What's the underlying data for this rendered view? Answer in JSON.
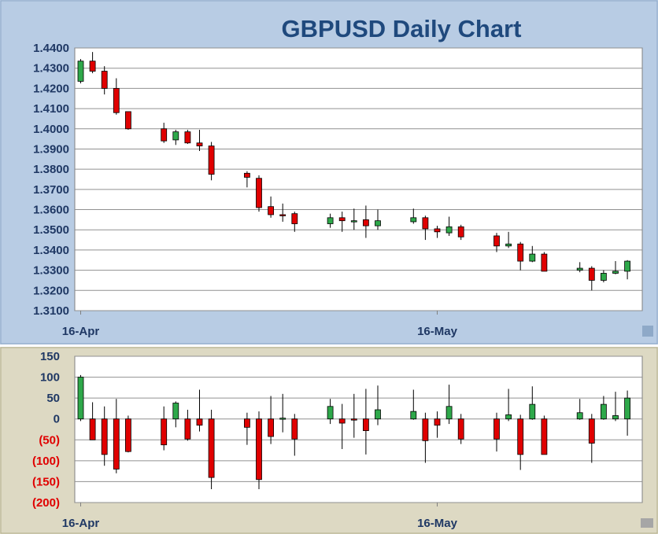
{
  "chart_data": [
    {
      "type": "candlestick",
      "title": "GBPUSD Daily Chart",
      "ylim": [
        1.31,
        1.44
      ],
      "y_ticks": [
        1.44,
        1.43,
        1.42,
        1.41,
        1.4,
        1.39,
        1.38,
        1.37,
        1.36,
        1.35,
        1.34,
        1.33,
        1.32,
        1.31
      ],
      "y_tick_labels": [
        "1.4400",
        "1.4300",
        "1.4200",
        "1.4100",
        "1.4000",
        "1.3900",
        "1.3800",
        "1.3700",
        "1.3600",
        "1.3500",
        "1.3400",
        "1.3300",
        "1.3200",
        "1.3100"
      ],
      "x_tick_labels": [
        {
          "label": "16-Apr",
          "day": 0
        },
        {
          "label": "16-May",
          "day": 30
        }
      ],
      "grid": true,
      "colors": {
        "up": "#2ea84a",
        "down": "#e00000",
        "background": "#b8cce4",
        "plot": "#ffffff"
      },
      "candles": [
        {
          "day": 0,
          "open": 1.4235,
          "high": 1.4345,
          "low": 1.4225,
          "close": 1.4335
        },
        {
          "day": 1,
          "open": 1.4335,
          "high": 1.438,
          "low": 1.4275,
          "close": 1.4285
        },
        {
          "day": 2,
          "open": 1.4285,
          "high": 1.431,
          "low": 1.417,
          "close": 1.42
        },
        {
          "day": 3,
          "open": 1.42,
          "high": 1.425,
          "low": 1.407,
          "close": 1.408
        },
        {
          "day": 4,
          "open": 1.4085,
          "high": 1.4085,
          "low": 1.3995,
          "close": 1.4
        },
        {
          "day": 7,
          "open": 1.4,
          "high": 1.403,
          "low": 1.393,
          "close": 1.394
        },
        {
          "day": 8,
          "open": 1.3945,
          "high": 1.3995,
          "low": 1.392,
          "close": 1.3985
        },
        {
          "day": 9,
          "open": 1.3985,
          "high": 1.3995,
          "low": 1.3925,
          "close": 1.393
        },
        {
          "day": 10,
          "open": 1.393,
          "high": 1.3995,
          "low": 1.389,
          "close": 1.3915
        },
        {
          "day": 11,
          "open": 1.3915,
          "high": 1.3935,
          "low": 1.3745,
          "close": 1.3775
        },
        {
          "day": 14,
          "open": 1.378,
          "high": 1.379,
          "low": 1.371,
          "close": 1.376
        },
        {
          "day": 15,
          "open": 1.3755,
          "high": 1.377,
          "low": 1.359,
          "close": 1.361
        },
        {
          "day": 16,
          "open": 1.3615,
          "high": 1.3665,
          "low": 1.356,
          "close": 1.3575
        },
        {
          "day": 17,
          "open": 1.3575,
          "high": 1.363,
          "low": 1.354,
          "close": 1.357
        },
        {
          "day": 18,
          "open": 1.358,
          "high": 1.359,
          "low": 1.349,
          "close": 1.353
        },
        {
          "day": 21,
          "open": 1.353,
          "high": 1.358,
          "low": 1.351,
          "close": 1.356
        },
        {
          "day": 22,
          "open": 1.356,
          "high": 1.359,
          "low": 1.349,
          "close": 1.3545
        },
        {
          "day": 23,
          "open": 1.3545,
          "high": 1.3605,
          "low": 1.35,
          "close": 1.3545
        },
        {
          "day": 24,
          "open": 1.355,
          "high": 1.362,
          "low": 1.346,
          "close": 1.352
        },
        {
          "day": 25,
          "open": 1.352,
          "high": 1.36,
          "low": 1.35,
          "close": 1.3545
        },
        {
          "day": 28,
          "open": 1.354,
          "high": 1.3605,
          "low": 1.353,
          "close": 1.356
        },
        {
          "day": 29,
          "open": 1.356,
          "high": 1.357,
          "low": 1.345,
          "close": 1.3505
        },
        {
          "day": 30,
          "open": 1.3505,
          "high": 1.352,
          "low": 1.346,
          "close": 1.349
        },
        {
          "day": 31,
          "open": 1.3485,
          "high": 1.3565,
          "low": 1.347,
          "close": 1.3515
        },
        {
          "day": 32,
          "open": 1.3515,
          "high": 1.3525,
          "low": 1.345,
          "close": 1.3465
        },
        {
          "day": 35,
          "open": 1.347,
          "high": 1.3485,
          "low": 1.339,
          "close": 1.342
        },
        {
          "day": 36,
          "open": 1.342,
          "high": 1.349,
          "low": 1.341,
          "close": 1.343
        },
        {
          "day": 37,
          "open": 1.343,
          "high": 1.344,
          "low": 1.33,
          "close": 1.3345
        },
        {
          "day": 38,
          "open": 1.3345,
          "high": 1.342,
          "low": 1.334,
          "close": 1.338
        },
        {
          "day": 39,
          "open": 1.338,
          "high": 1.339,
          "low": 1.3295,
          "close": 1.3295
        },
        {
          "day": 42,
          "open": 1.33,
          "high": 1.334,
          "low": 1.329,
          "close": 1.331
        },
        {
          "day": 43,
          "open": 1.331,
          "high": 1.332,
          "low": 1.32,
          "close": 1.325
        },
        {
          "day": 44,
          "open": 1.325,
          "high": 1.33,
          "low": 1.324,
          "close": 1.3285
        },
        {
          "day": 45,
          "open": 1.3285,
          "high": 1.3345,
          "low": 1.328,
          "close": 1.3295
        },
        {
          "day": 46,
          "open": 1.3295,
          "high": 1.335,
          "low": 1.3255,
          "close": 1.3345
        }
      ]
    },
    {
      "type": "candlestick",
      "ylim": [
        -200,
        150
      ],
      "y_ticks": [
        150,
        100,
        50,
        0,
        -50,
        -100,
        -150,
        -200
      ],
      "y_tick_labels": [
        "150",
        "100",
        "50",
        "0",
        "(50)",
        "(100)",
        "(150)",
        "(200)"
      ],
      "x_tick_labels": [
        {
          "label": "16-Apr",
          "day": 0
        },
        {
          "label": "16-May",
          "day": 30
        }
      ],
      "grid": true,
      "colors": {
        "up": "#2ea84a",
        "down": "#e00000",
        "background": "#ddd9c3",
        "plot": "#ffffff"
      },
      "candles": [
        {
          "day": 0,
          "open": 0,
          "high": 105,
          "low": -5,
          "close": 100
        },
        {
          "day": 1,
          "open": 0,
          "high": 40,
          "low": -50,
          "close": -50
        },
        {
          "day": 2,
          "open": 0,
          "high": 30,
          "low": -112,
          "close": -85
        },
        {
          "day": 3,
          "open": 0,
          "high": 48,
          "low": -130,
          "close": -120
        },
        {
          "day": 4,
          "open": 0,
          "high": 8,
          "low": -80,
          "close": -78
        },
        {
          "day": 7,
          "open": 0,
          "high": 30,
          "low": -75,
          "close": -62
        },
        {
          "day": 8,
          "open": 0,
          "high": 42,
          "low": -20,
          "close": 38
        },
        {
          "day": 9,
          "open": 0,
          "high": 22,
          "low": -52,
          "close": -48
        },
        {
          "day": 10,
          "open": 0,
          "high": 70,
          "low": -30,
          "close": -15
        },
        {
          "day": 11,
          "open": 0,
          "high": 22,
          "low": -168,
          "close": -140
        },
        {
          "day": 14,
          "open": 0,
          "high": 15,
          "low": -62,
          "close": -20
        },
        {
          "day": 15,
          "open": 0,
          "high": 18,
          "low": -168,
          "close": -145
        },
        {
          "day": 16,
          "open": 0,
          "high": 55,
          "low": -60,
          "close": -42
        },
        {
          "day": 17,
          "open": 0,
          "high": 60,
          "low": -32,
          "close": 2
        },
        {
          "day": 18,
          "open": 0,
          "high": 12,
          "low": -88,
          "close": -48
        },
        {
          "day": 21,
          "open": 0,
          "high": 48,
          "low": -12,
          "close": 30
        },
        {
          "day": 22,
          "open": 0,
          "high": 36,
          "low": -72,
          "close": -10
        },
        {
          "day": 23,
          "open": 0,
          "high": 60,
          "low": -45,
          "close": -2
        },
        {
          "day": 24,
          "open": 0,
          "high": 72,
          "low": -85,
          "close": -28
        },
        {
          "day": 25,
          "open": 0,
          "high": 80,
          "low": -15,
          "close": 22
        },
        {
          "day": 28,
          "open": 0,
          "high": 70,
          "low": -2,
          "close": 18
        },
        {
          "day": 29,
          "open": 0,
          "high": 15,
          "low": -105,
          "close": -52
        },
        {
          "day": 30,
          "open": 0,
          "high": 18,
          "low": -45,
          "close": -15
        },
        {
          "day": 31,
          "open": 0,
          "high": 82,
          "low": -12,
          "close": 30
        },
        {
          "day": 32,
          "open": 0,
          "high": 12,
          "low": -60,
          "close": -48
        },
        {
          "day": 35,
          "open": 0,
          "high": 15,
          "low": -78,
          "close": -48
        },
        {
          "day": 36,
          "open": 0,
          "high": 72,
          "low": -5,
          "close": 10
        },
        {
          "day": 37,
          "open": 0,
          "high": 10,
          "low": -122,
          "close": -85
        },
        {
          "day": 38,
          "open": 0,
          "high": 78,
          "low": -2,
          "close": 35
        },
        {
          "day": 39,
          "open": 0,
          "high": 8,
          "low": -85,
          "close": -85
        },
        {
          "day": 42,
          "open": 0,
          "high": 48,
          "low": -2,
          "close": 15
        },
        {
          "day": 43,
          "open": 0,
          "high": 12,
          "low": -105,
          "close": -58
        },
        {
          "day": 44,
          "open": 0,
          "high": 55,
          "low": -2,
          "close": 35
        },
        {
          "day": 45,
          "open": 0,
          "high": 65,
          "low": -5,
          "close": 8
        },
        {
          "day": 46,
          "open": 0,
          "high": 68,
          "low": -40,
          "close": 50
        }
      ]
    }
  ]
}
